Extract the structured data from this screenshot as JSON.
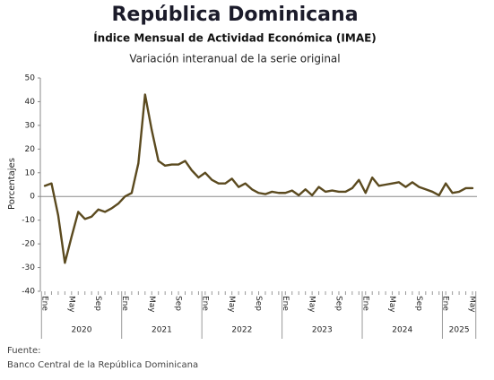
{
  "chart_data": {
    "type": "line",
    "title": "República Dominicana",
    "subtitle": "Índice Mensual de Actividad Económica (IMAE)",
    "caption": "Variación interanual de la serie original",
    "y_label": "Porcentajes",
    "source_label": "Fuente:",
    "source": "Banco Central de la República Dominicana",
    "years": [
      "2020",
      "2021",
      "2022",
      "2023",
      "2024",
      "2025"
    ],
    "categories": [
      "Ene",
      null,
      null,
      null,
      "May",
      null,
      null,
      null,
      "Sep",
      null,
      null,
      null,
      "Ene",
      null,
      null,
      null,
      "May",
      null,
      null,
      null,
      "Sep",
      null,
      null,
      null,
      "Ene",
      null,
      null,
      null,
      "May",
      null,
      null,
      null,
      "Sep",
      null,
      null,
      null,
      "Ene",
      null,
      null,
      null,
      "May",
      null,
      null,
      null,
      "Sep",
      null,
      null,
      null,
      "Ene",
      null,
      null,
      null,
      "May",
      null,
      null,
      null,
      "Sep",
      null,
      null,
      null,
      "Ene",
      null,
      null,
      null,
      "May"
    ],
    "series": [
      {
        "name": "IMAE",
        "color": "#5b4a1f",
        "values": [
          4.5,
          5.5,
          -8,
          -28,
          -17,
          -6.5,
          -9.5,
          -8.5,
          -5.5,
          -6.5,
          -5,
          -3,
          0,
          1.5,
          14,
          43,
          28,
          15,
          13,
          13.5,
          13.5,
          15,
          11,
          8,
          10,
          7,
          5.5,
          5.5,
          7.5,
          4,
          5.5,
          3,
          1.5,
          1,
          2,
          1.5,
          1.5,
          2.5,
          0.5,
          3,
          0.5,
          4,
          2,
          2.5,
          2,
          2,
          3.5,
          7,
          1.5,
          8,
          4.5,
          5,
          5.5,
          6,
          4,
          6,
          4,
          3,
          2,
          0.5,
          5.5,
          1.5,
          2,
          3.5,
          3.5
        ]
      }
    ],
    "ylim": [
      -40,
      50
    ],
    "yticks": [
      -40,
      -30,
      -20,
      -10,
      0,
      10,
      20,
      30,
      40,
      50
    ]
  }
}
